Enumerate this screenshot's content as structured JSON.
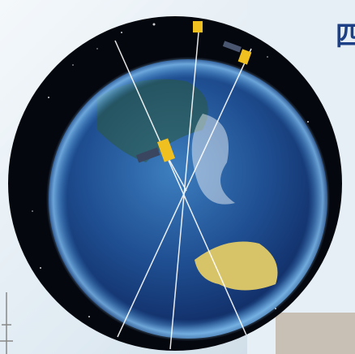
{
  "header": {
    "title": "四"
  }
}
